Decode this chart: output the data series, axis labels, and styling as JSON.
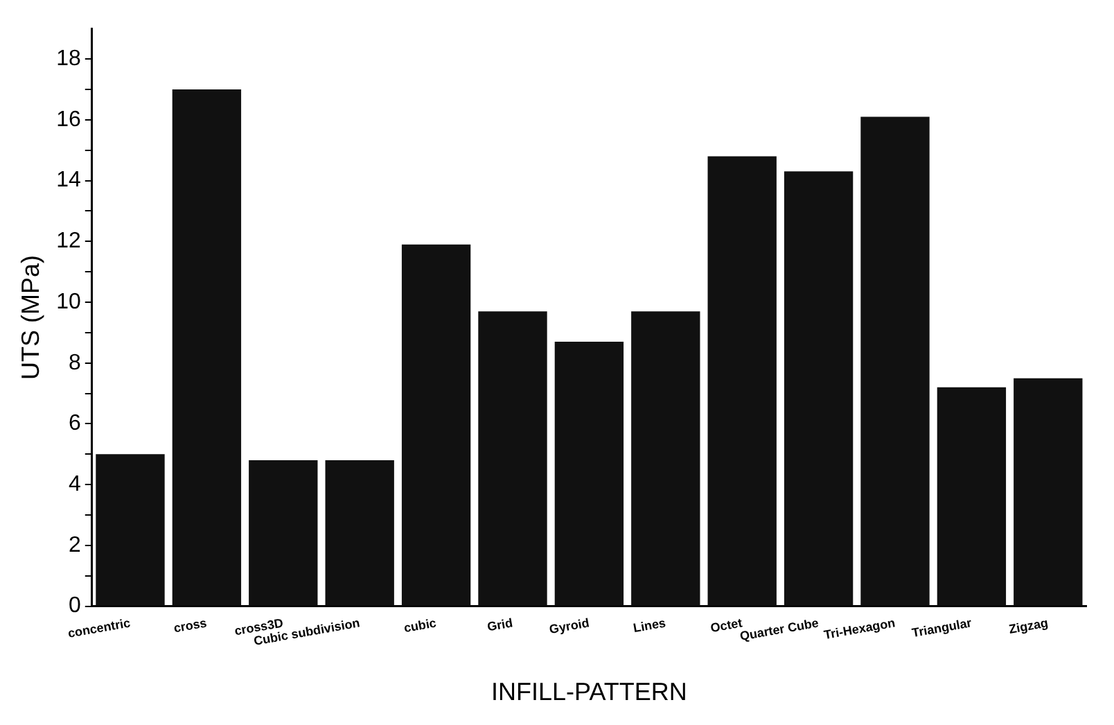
{
  "chart_data": {
    "type": "bar",
    "xlabel": "INFILL-PATTERN",
    "ylabel": "UTS (MPa)",
    "categories": [
      "concentric",
      "cross",
      "cross3D",
      "Cubic subdivision",
      "cubic",
      "Grid",
      "Gyroid",
      "Lines",
      "Octet",
      "Quarter Cube",
      "Tri-Hexagon",
      "Triangular",
      "Zigzag"
    ],
    "values": [
      5.0,
      17.0,
      4.8,
      4.8,
      11.9,
      9.7,
      8.7,
      9.7,
      14.8,
      14.3,
      16.1,
      7.2,
      7.5
    ],
    "color": "#111111",
    "ylim": [
      0,
      19
    ],
    "yticks": [
      0,
      {
        "value": 1,
        "label": null
      },
      2,
      {
        "value": 3,
        "label": null
      },
      4,
      {
        "value": 5,
        "label": null
      },
      6,
      {
        "value": 7,
        "label": null
      },
      8,
      {
        "value": 9,
        "label": null
      },
      10,
      {
        "value": 11,
        "label": null
      },
      12,
      {
        "value": 13,
        "label": null
      },
      14,
      {
        "value": 15,
        "label": null
      },
      16,
      {
        "value": 17,
        "label": null
      },
      18
    ],
    "grid": false,
    "legend": false
  }
}
